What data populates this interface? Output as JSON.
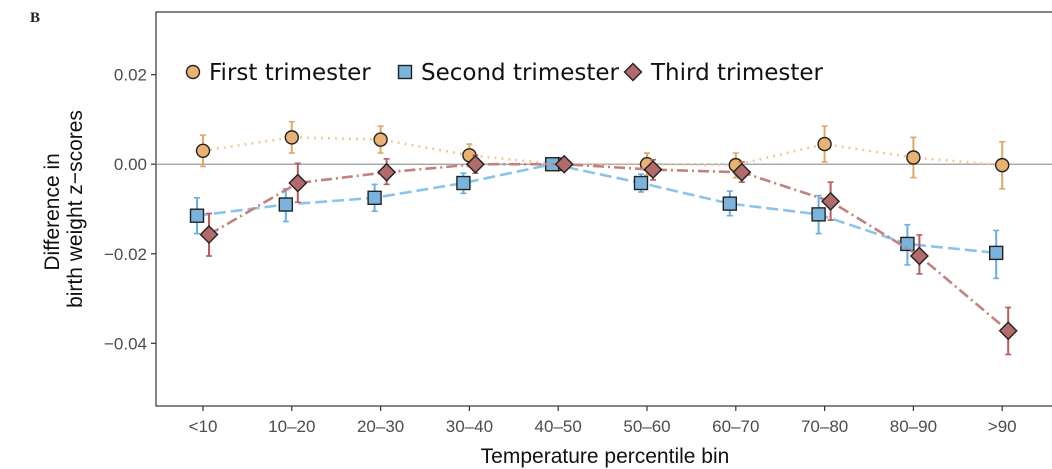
{
  "panel_label": "B",
  "chart_data": {
    "type": "line",
    "xlabel": "Temperature percentile bin",
    "ylabel": "Difference in\nbirth weight z−scores",
    "ylabel_lines": [
      "Difference in",
      "birth weight z−scores"
    ],
    "categories": [
      "<10",
      "10–20",
      "20–30",
      "30–40",
      "40–50",
      "50–60",
      "60–70",
      "70–80",
      "80–90",
      ">90"
    ],
    "ylim": [
      -0.054,
      0.034
    ],
    "yticks": [
      0.02,
      0.0,
      -0.02,
      -0.04
    ],
    "ytick_labels": [
      "0.02",
      "0.00",
      "−0.02",
      "−0.04"
    ],
    "reference_line": 0,
    "grid": false,
    "legend_position": "top-left",
    "series": [
      {
        "name": "First trimester",
        "marker": "circle",
        "line_style": "dotted",
        "color": "#f2c99a",
        "fill": "#e8b272",
        "errcolor": "#e0a865",
        "values": [
          0.003,
          0.006,
          0.0055,
          0.002,
          0.0,
          0.0,
          -0.0002,
          0.0045,
          0.0015,
          -0.0002
        ],
        "lower": [
          -0.0005,
          0.0025,
          0.0025,
          -0.0005,
          -0.0005,
          -0.0025,
          -0.003,
          0.0005,
          -0.003,
          -0.0055
        ],
        "upper": [
          0.0065,
          0.0095,
          0.0085,
          0.0045,
          0.0005,
          0.0025,
          0.0025,
          0.0085,
          0.006,
          0.005
        ]
      },
      {
        "name": "Second trimester",
        "marker": "square",
        "line_style": "longdash",
        "color": "#8cc4e8",
        "fill": "#7bb3dc",
        "errcolor": "#6aaedf",
        "values": [
          -0.0115,
          -0.009,
          -0.0075,
          -0.0042,
          0.0,
          -0.0042,
          -0.0088,
          -0.0112,
          -0.0178,
          -0.0198
        ],
        "lower": [
          -0.0155,
          -0.0128,
          -0.0105,
          -0.0065,
          -0.0005,
          -0.0062,
          -0.0115,
          -0.0155,
          -0.0225,
          -0.0255
        ],
        "upper": [
          -0.0075,
          -0.0055,
          -0.0045,
          -0.002,
          0.0005,
          -0.0022,
          -0.006,
          -0.007,
          -0.0135,
          -0.0148
        ]
      },
      {
        "name": "Third trimester",
        "marker": "diamond",
        "line_style": "dotdash",
        "color": "#c48080",
        "fill": "#b36a6a",
        "errcolor": "#b85c5c",
        "values": [
          -0.0157,
          -0.0042,
          -0.0018,
          0.0,
          0.0,
          -0.0012,
          -0.0018,
          -0.0083,
          -0.0205,
          -0.0372
        ],
        "lower": [
          -0.0205,
          -0.0085,
          -0.0045,
          -0.002,
          -0.0005,
          -0.0035,
          -0.004,
          -0.0125,
          -0.0245,
          -0.0425
        ],
        "upper": [
          -0.011,
          0.0002,
          0.0012,
          0.002,
          0.0005,
          0.001,
          0.0005,
          -0.004,
          -0.0158,
          -0.032
        ]
      }
    ]
  }
}
